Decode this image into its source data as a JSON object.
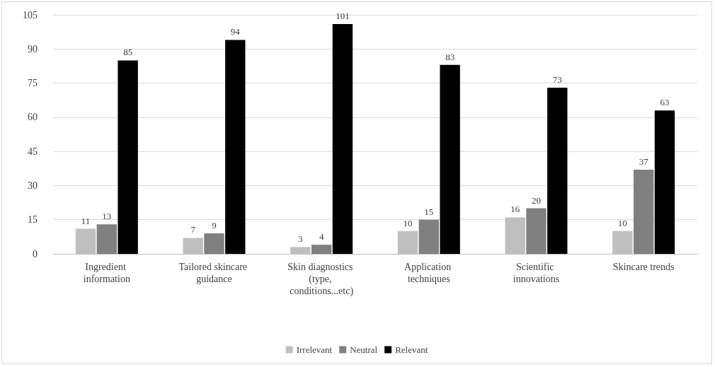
{
  "chart_data": {
    "type": "bar",
    "categories": [
      "Ingredient information",
      "Tailored skincare guidance",
      "Skin diagnostics (type, conditions...etc)",
      "Application techniques",
      "Scientific innovations",
      "Skincare trends"
    ],
    "series": [
      {
        "name": "Irrelevant",
        "color": "#bfbfbf",
        "values": [
          11,
          7,
          3,
          10,
          16,
          10
        ]
      },
      {
        "name": "Neutral",
        "color": "#808080",
        "values": [
          13,
          9,
          4,
          15,
          20,
          37
        ]
      },
      {
        "name": "Relevant",
        "color": "#000000",
        "values": [
          85,
          94,
          101,
          83,
          73,
          63
        ]
      }
    ],
    "ylim": [
      0,
      105
    ],
    "yticks": [
      0,
      15,
      30,
      45,
      60,
      75,
      90,
      105
    ],
    "grid": "y",
    "legend": "bottom",
    "data_labels": true
  }
}
